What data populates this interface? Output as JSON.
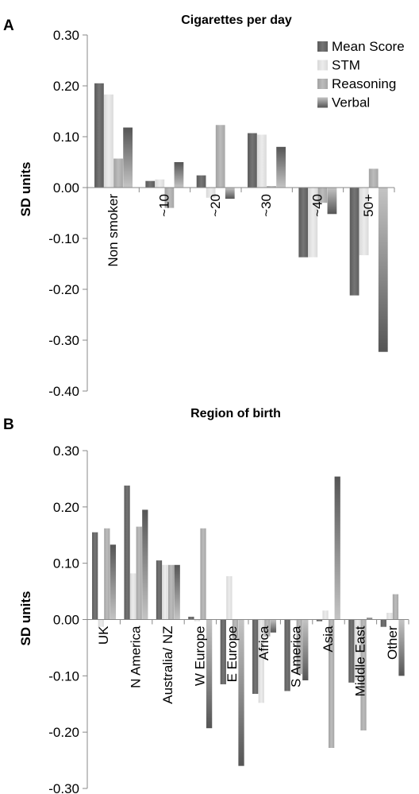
{
  "colors": {
    "Mean Score": "#6f6f6f",
    "STM": "#e3e3e3",
    "Reasoning": "#b0b0b0",
    "Verbal": "#7e7e7e"
  },
  "chart_data": [
    {
      "panel": "A",
      "type": "bar",
      "title": "Cigarettes per day",
      "ylabel": "SD units",
      "ylim": [
        -0.4,
        0.3
      ],
      "yticks": [
        "0.30",
        "0.20",
        "0.10",
        "0.00",
        "-0.10",
        "-0.20",
        "-0.30",
        "-0.40"
      ],
      "legend_position": "top-right",
      "categories": [
        "Non smoker",
        "~10",
        "~20",
        "~30",
        "~40",
        "50+"
      ],
      "series": [
        {
          "name": "Mean Score",
          "values": [
            0.205,
            0.013,
            0.024,
            0.107,
            -0.137,
            -0.212
          ]
        },
        {
          "name": "STM",
          "values": [
            0.183,
            0.016,
            -0.02,
            0.104,
            -0.137,
            -0.133
          ]
        },
        {
          "name": "Reasoning",
          "values": [
            0.057,
            -0.04,
            0.123,
            0.003,
            -0.03,
            0.037
          ]
        },
        {
          "name": "Verbal",
          "values": [
            0.118,
            0.05,
            -0.022,
            0.08,
            -0.052,
            -0.323
          ]
        }
      ]
    },
    {
      "panel": "B",
      "type": "bar",
      "title": "Region of birth",
      "ylabel": "SD units",
      "ylim": [
        -0.3,
        0.3
      ],
      "yticks": [
        "0.30",
        "0.20",
        "0.10",
        "0.00",
        "-0.10",
        "-0.20",
        "-0.30"
      ],
      "categories": [
        "UK",
        "N America",
        "Australia/ NZ",
        "W Europe",
        "E Europe",
        "Africa",
        "S America",
        "Asia",
        "Middle East",
        "Other"
      ],
      "series": [
        {
          "name": "Mean Score",
          "values": [
            0.155,
            0.238,
            0.105,
            0.005,
            -0.115,
            -0.132,
            -0.127,
            -0.003,
            -0.112,
            -0.013
          ]
        },
        {
          "name": "STM",
          "values": [
            -0.013,
            0.082,
            0.097,
            -0.003,
            0.077,
            -0.148,
            -0.002,
            0.016,
            -0.108,
            0.012
          ]
        },
        {
          "name": "Reasoning",
          "values": [
            0.162,
            0.165,
            0.097,
            0.162,
            -0.033,
            -0.03,
            -0.097,
            -0.228,
            -0.197,
            0.045
          ]
        },
        {
          "name": "Verbal",
          "values": [
            0.133,
            0.195,
            0.097,
            -0.193,
            -0.26,
            -0.023,
            -0.108,
            0.254,
            0.003,
            -0.1
          ]
        }
      ]
    }
  ]
}
